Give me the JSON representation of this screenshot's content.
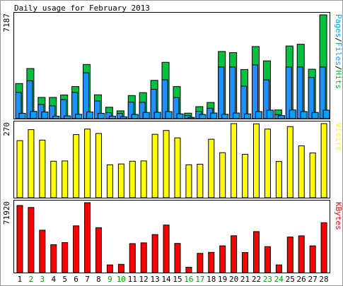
{
  "chart_data": {
    "type": "bar",
    "title": "Daily usage for February 2013",
    "categories": [
      "1",
      "2",
      "3",
      "4",
      "5",
      "6",
      "7",
      "8",
      "9",
      "10",
      "11",
      "12",
      "13",
      "14",
      "15",
      "16",
      "17",
      "18",
      "19",
      "20",
      "21",
      "22",
      "23",
      "24",
      "25",
      "26",
      "27",
      "28"
    ],
    "weekend_days": [
      "2",
      "3",
      "9",
      "10",
      "16",
      "17",
      "23",
      "24"
    ],
    "colors": {
      "pages": "#00a0ff",
      "files": "#1e90ff",
      "hits": "#00c040",
      "visits": "#ffff00",
      "kbytes": "#ff0000",
      "weekday_label": "#000000",
      "weekend_label": "#00a000",
      "background": "#ffffff",
      "frame": "#000000"
    },
    "panels": [
      {
        "id": "hits",
        "side_label": [
          "Pages",
          "/",
          "Files",
          "/",
          "Hits"
        ],
        "side_label_colors": [
          "#00a0ff",
          "#000000",
          "#1e90ff",
          "#000000",
          "#00c040"
        ],
        "ymax_label": "7187",
        "ylim": [
          0,
          7187
        ],
        "series": [
          {
            "name": "Hits",
            "values": [
              2430,
              3470,
              1470,
              1470,
              1640,
              2220,
              3750,
              1650,
              790,
              540,
              1600,
              1800,
              2650,
              3900,
              2220,
              380,
              830,
              1120,
              4650,
              4570,
              3400,
              4990,
              4000,
              600,
              5030,
              5150,
              3420,
              7187
            ]
          },
          {
            "name": "Files",
            "values": [
              1820,
              2620,
              980,
              890,
              1320,
              1820,
              3170,
              1220,
              410,
              360,
              1140,
              1130,
              2030,
              2690,
              1460,
              220,
              510,
              720,
              3570,
              3570,
              2250,
              3720,
              2680,
              280,
              3570,
              3570,
              2850,
              3570
            ]
          },
          {
            "name": "Pages",
            "values": [
              370,
              500,
              460,
              170,
              190,
              300,
              460,
              370,
              170,
              130,
              290,
              430,
              440,
              490,
              330,
              90,
              290,
              390,
              300,
              390,
              330,
              490,
              590,
              210,
              600,
              490,
              430,
              590
            ]
          }
        ]
      },
      {
        "id": "visits",
        "side_label": [
          "Visits"
        ],
        "side_label_colors": [
          "#ffff00"
        ],
        "ymax_label": "270",
        "ylim": [
          0,
          270
        ],
        "series": [
          {
            "name": "Visits",
            "values": [
              208,
              248,
              210,
              133,
              134,
              230,
              250,
              234,
              120,
              123,
              133,
              134,
              231,
              245,
              218,
              120,
              122,
              213,
              164,
              270,
              158,
              269,
              250,
              132,
              259,
              189,
              163,
              270
            ]
          }
        ]
      },
      {
        "id": "kbytes",
        "side_label": [
          "KBytes"
        ],
        "side_label_colors": [
          "#ff0000"
        ],
        "ymax_label": "71920",
        "ylim": [
          0,
          71920
        ],
        "series": [
          {
            "name": "KBytes",
            "values": [
              69000,
              67000,
              43600,
              28700,
              30900,
              48100,
              71920,
              46200,
              7900,
              8500,
              29800,
              30600,
              39100,
              48900,
              30000,
              5500,
              19800,
              20800,
              27500,
              37900,
              20600,
              42200,
              26700,
              7900,
              36600,
              37800,
              27500,
              51300
            ]
          }
        ]
      }
    ]
  }
}
